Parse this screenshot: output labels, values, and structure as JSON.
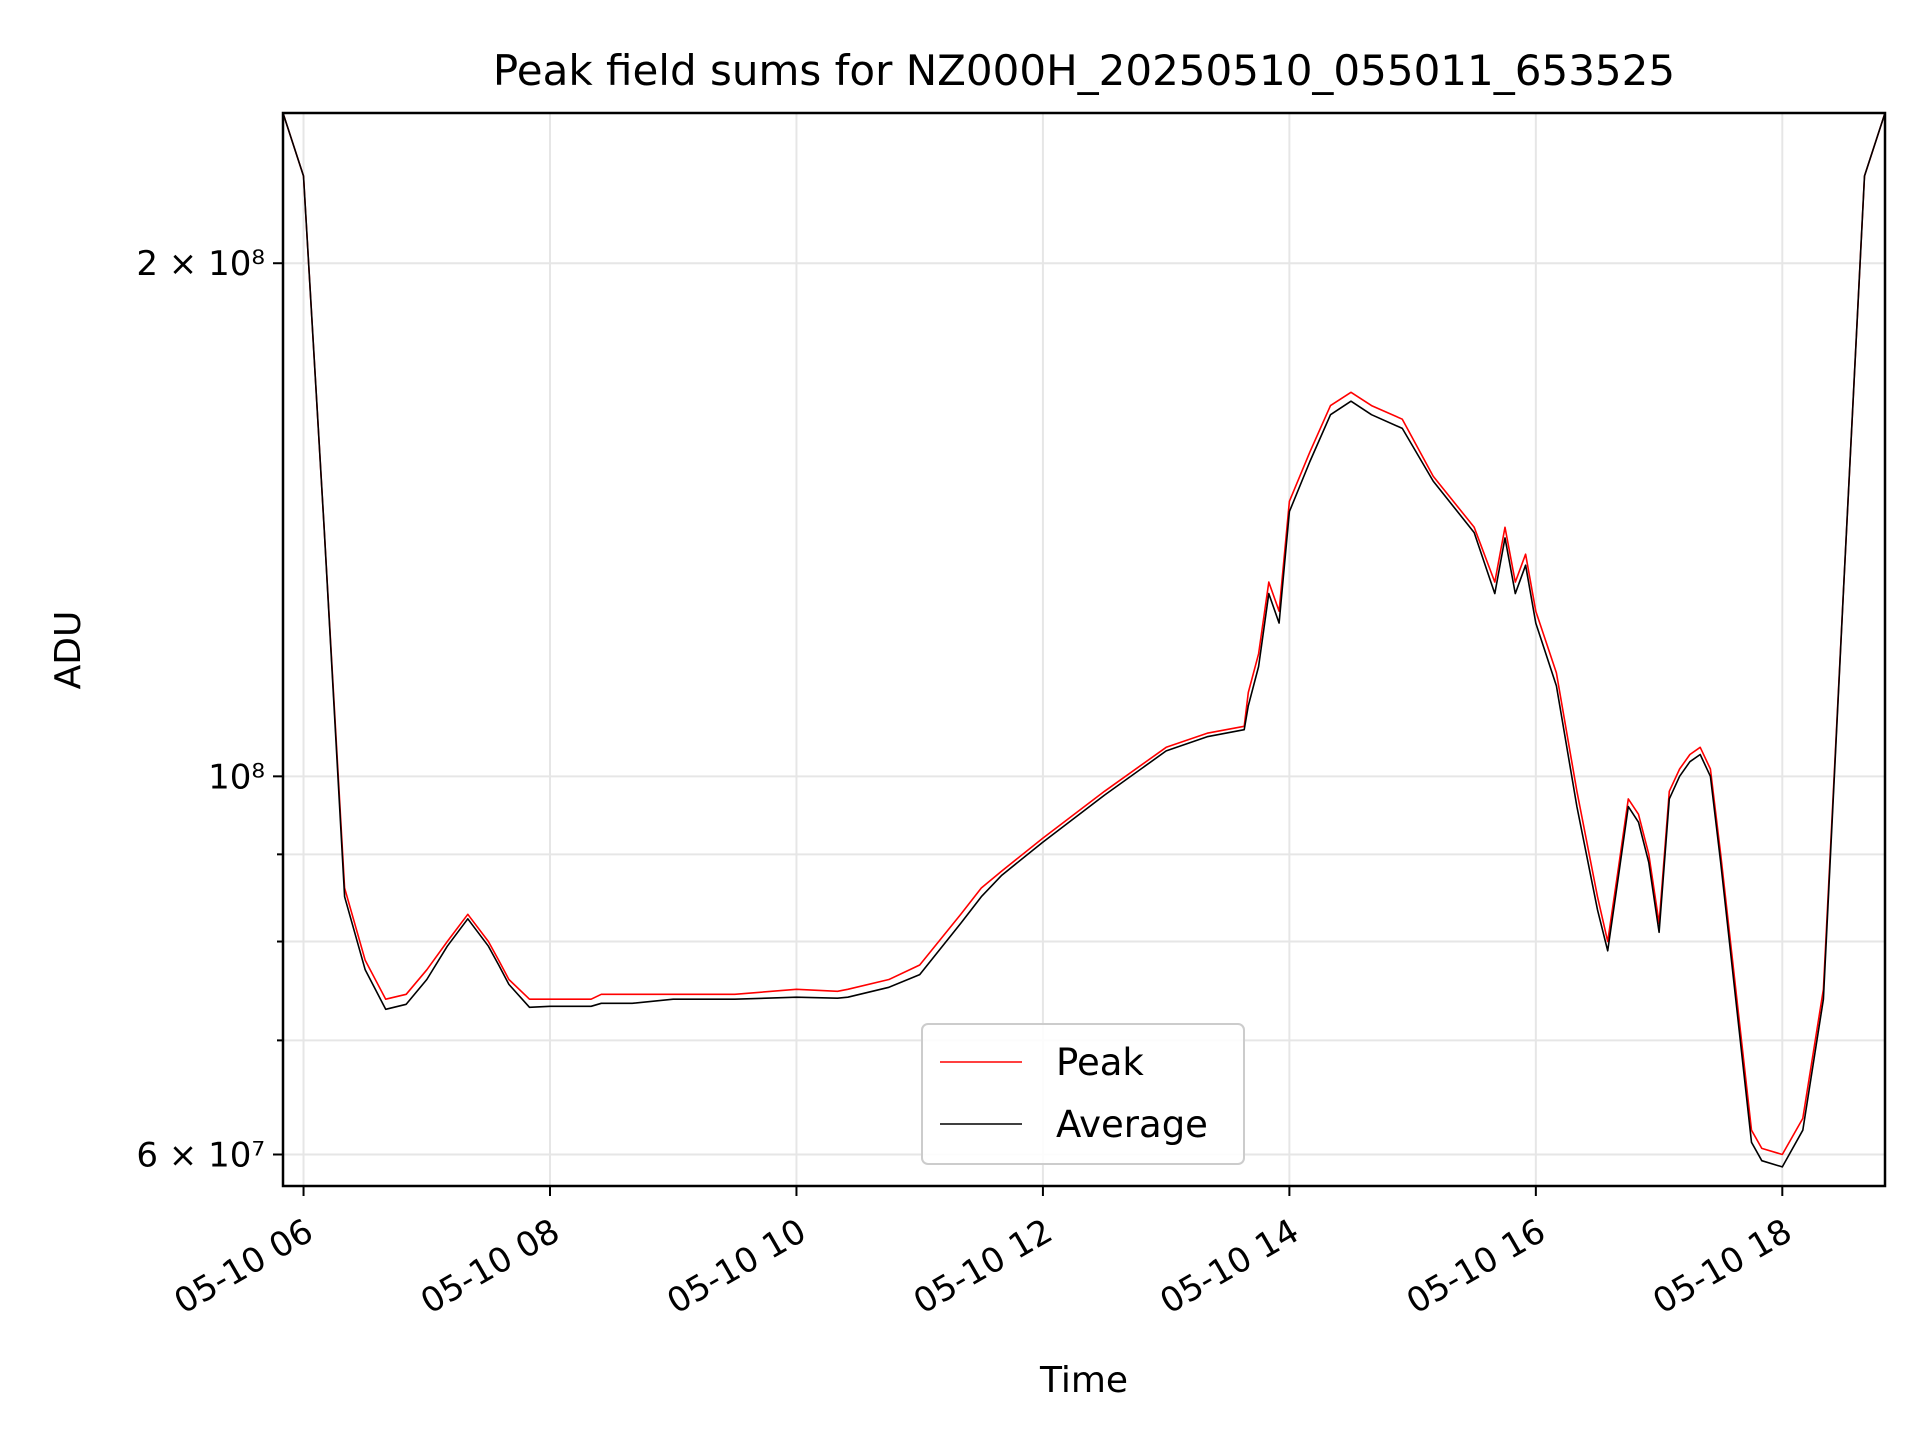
{
  "chart_data": {
    "type": "line",
    "title": "Peak field sums for NZ000H_20250510_055011_653525",
    "xlabel": "Time",
    "ylabel": "ADU",
    "yscale": "log",
    "xlim": [
      "05-10 05:50",
      "05-10 18:50"
    ],
    "ylim": [
      57500000,
      245000000
    ],
    "grid": true,
    "legend_position": "lower-center",
    "x_ticks": [
      "05-10 06",
      "05-10 08",
      "05-10 10",
      "05-10 12",
      "05-10 14",
      "05-10 16",
      "05-10 18"
    ],
    "y_ticks": [
      {
        "value": 200000000,
        "label": "2 × 10⁸"
      },
      {
        "value": 100000000,
        "label": "10⁸"
      },
      {
        "value": 60000000,
        "label": "6 × 10⁷"
      }
    ],
    "y_minor_ticks": [
      70000000,
      80000000,
      90000000
    ],
    "series": [
      {
        "name": "Peak",
        "color": "#ff0000",
        "x": [
          "05-10 05:50",
          "05-10 06:00",
          "05-10 06:10",
          "05-10 06:20",
          "05-10 06:30",
          "05-10 06:40",
          "05-10 06:50",
          "05-10 07:00",
          "05-10 07:10",
          "05-10 07:20",
          "05-10 07:30",
          "05-10 07:35",
          "05-10 07:40",
          "05-10 07:50",
          "05-10 08:00",
          "05-10 08:20",
          "05-10 08:25",
          "05-10 08:40",
          "05-10 09:00",
          "05-10 09:30",
          "05-10 10:00",
          "05-10 10:20",
          "05-10 10:25",
          "05-10 10:45",
          "05-10 11:00",
          "05-10 11:20",
          "05-10 11:30",
          "05-10 11:40",
          "05-10 12:00",
          "05-10 12:30",
          "05-10 13:00",
          "05-10 13:20",
          "05-10 13:38",
          "05-10 13:40",
          "05-10 13:45",
          "05-10 13:50",
          "05-10 13:55",
          "05-10 14:00",
          "05-10 14:10",
          "05-10 14:20",
          "05-10 14:30",
          "05-10 14:40",
          "05-10 14:55",
          "05-10 15:10",
          "05-10 15:30",
          "05-10 15:40",
          "05-10 15:45",
          "05-10 15:50",
          "05-10 15:55",
          "05-10 16:00",
          "05-10 16:10",
          "05-10 16:20",
          "05-10 16:30",
          "05-10 16:35",
          "05-10 16:40",
          "05-10 16:45",
          "05-10 16:50",
          "05-10 16:55",
          "05-10 17:00",
          "05-10 17:05",
          "05-10 17:10",
          "05-10 17:15",
          "05-10 17:20",
          "05-10 17:25",
          "05-10 17:30",
          "05-10 17:45",
          "05-10 17:50",
          "05-10 18:00",
          "05-10 18:10",
          "05-10 18:20",
          "05-10 18:30",
          "05-10 18:40",
          "05-10 18:50"
        ],
        "values": [
          245000000,
          225000000,
          140000000,
          86000000,
          78000000,
          74000000,
          74500000,
          77000000,
          80000000,
          83000000,
          80000000,
          78000000,
          76000000,
          74000000,
          74000000,
          74000000,
          74500000,
          74500000,
          74500000,
          74500000,
          75000000,
          74800000,
          75000000,
          76000000,
          77500000,
          83000000,
          86000000,
          88000000,
          92000000,
          98000000,
          104000000,
          106000000,
          107000000,
          112000000,
          118000000,
          130000000,
          125000000,
          145000000,
          155000000,
          165000000,
          168000000,
          165000000,
          162000000,
          150000000,
          140000000,
          130000000,
          140000000,
          130000000,
          135000000,
          125000000,
          115000000,
          98000000,
          85000000,
          80000000,
          88000000,
          97000000,
          95000000,
          90000000,
          82000000,
          98000000,
          101000000,
          103000000,
          104000000,
          101000000,
          90000000,
          62000000,
          60500000,
          60000000,
          63000000,
          75000000,
          130000000,
          225000000,
          245000000
        ]
      },
      {
        "name": "Average",
        "color": "#000000",
        "x": [
          "05-10 05:50",
          "05-10 06:00",
          "05-10 06:10",
          "05-10 06:20",
          "05-10 06:30",
          "05-10 06:40",
          "05-10 06:50",
          "05-10 07:00",
          "05-10 07:10",
          "05-10 07:20",
          "05-10 07:30",
          "05-10 07:35",
          "05-10 07:40",
          "05-10 07:50",
          "05-10 08:00",
          "05-10 08:20",
          "05-10 08:25",
          "05-10 08:40",
          "05-10 09:00",
          "05-10 09:30",
          "05-10 10:00",
          "05-10 10:20",
          "05-10 10:25",
          "05-10 10:45",
          "05-10 11:00",
          "05-10 11:20",
          "05-10 11:30",
          "05-10 11:40",
          "05-10 12:00",
          "05-10 12:30",
          "05-10 13:00",
          "05-10 13:20",
          "05-10 13:38",
          "05-10 13:40",
          "05-10 13:45",
          "05-10 13:50",
          "05-10 13:55",
          "05-10 14:00",
          "05-10 14:10",
          "05-10 14:20",
          "05-10 14:30",
          "05-10 14:40",
          "05-10 14:55",
          "05-10 15:10",
          "05-10 15:30",
          "05-10 15:40",
          "05-10 15:45",
          "05-10 15:50",
          "05-10 15:55",
          "05-10 16:00",
          "05-10 16:10",
          "05-10 16:20",
          "05-10 16:30",
          "05-10 16:35",
          "05-10 16:40",
          "05-10 16:45",
          "05-10 16:50",
          "05-10 16:55",
          "05-10 17:00",
          "05-10 17:05",
          "05-10 17:10",
          "05-10 17:15",
          "05-10 17:20",
          "05-10 17:25",
          "05-10 17:30",
          "05-10 17:45",
          "05-10 17:50",
          "05-10 18:00",
          "05-10 18:10",
          "05-10 18:20",
          "05-10 18:30",
          "05-10 18:40",
          "05-10 18:50"
        ],
        "values": [
          245000000,
          225000000,
          140000000,
          85000000,
          77000000,
          73000000,
          73500000,
          76000000,
          79500000,
          82500000,
          79500000,
          77500000,
          75500000,
          73200000,
          73300000,
          73300000,
          73600000,
          73600000,
          74000000,
          74000000,
          74200000,
          74100000,
          74200000,
          75200000,
          76500000,
          82000000,
          85000000,
          87500000,
          91500000,
          97500000,
          103500000,
          105500000,
          106500000,
          110000000,
          116000000,
          128000000,
          123000000,
          143000000,
          153000000,
          163000000,
          166000000,
          163000000,
          160000000,
          149000000,
          139000000,
          128000000,
          138000000,
          128000000,
          133000000,
          123000000,
          113000000,
          96000000,
          83500000,
          79000000,
          87000000,
          96000000,
          94000000,
          89000000,
          81000000,
          97000000,
          100000000,
          102000000,
          103000000,
          100000000,
          89000000,
          61000000,
          59500000,
          59000000,
          62000000,
          74000000,
          130000000,
          225000000,
          245000000
        ]
      }
    ]
  }
}
